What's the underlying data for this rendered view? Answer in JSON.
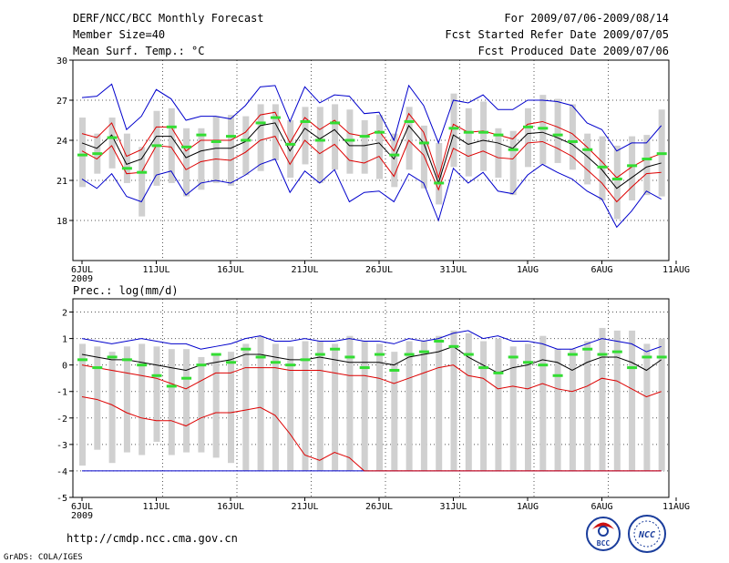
{
  "header": {
    "title": "DERF/NCC/BCC Monthly Forecast",
    "member_size": "Member Size=40",
    "variable": "Mean Surf. Temp.: °C",
    "period": "For 2009/07/06-2009/08/14",
    "started": "Fcst Started Refer Date 2009/07/05",
    "produced": "Fcst Produced Date 2009/07/06"
  },
  "footer": {
    "url": "http://cmdp.ncc.cma.gov.cn",
    "credit": "GrADS: COLA/IGES",
    "logo_bcc": "BCC",
    "logo_ncc": "NCC"
  },
  "x_axis": {
    "days": 40,
    "ticks": [
      {
        "day": 0,
        "label": "6JUL",
        "sub": "2009"
      },
      {
        "day": 5,
        "label": "11JUL"
      },
      {
        "day": 10,
        "label": "16JUL"
      },
      {
        "day": 15,
        "label": "21JUL"
      },
      {
        "day": 20,
        "label": "26JUL"
      },
      {
        "day": 25,
        "label": "31JUL"
      },
      {
        "day": 30,
        "label": "1AUG"
      },
      {
        "day": 35,
        "label": "6AUG"
      },
      {
        "day": 40,
        "label": "11AUG"
      }
    ]
  },
  "x_axis_prec_labels": [
    "6JUL",
    "11JUL",
    "16JUL",
    "21JUL",
    "26JUL",
    "31JUL",
    "1AUG",
    "6AUG",
    "11AUG"
  ],
  "colors": {
    "box": "#d0d0d0",
    "median": "#000000",
    "quartile": "#dd0000",
    "extreme": "#0000cc",
    "observed": "#33dd33",
    "grid": "#555555"
  },
  "chart_data": [
    {
      "type": "line",
      "title": "Mean Surf. Temp.: °C",
      "ylabel": "°C",
      "ylim": [
        15,
        30
      ],
      "yticks": [
        18,
        21,
        24,
        27,
        30
      ],
      "days": [
        "7/06",
        "7/07",
        "7/08",
        "7/09",
        "7/10",
        "7/11",
        "7/12",
        "7/13",
        "7/14",
        "7/15",
        "7/16",
        "7/17",
        "7/18",
        "7/19",
        "7/20",
        "7/21",
        "7/22",
        "7/23",
        "7/24",
        "7/25",
        "7/26",
        "7/27",
        "7/28",
        "7/29",
        "7/30",
        "7/31",
        "8/01",
        "8/02",
        "8/03",
        "8/04",
        "8/05",
        "8/06",
        "8/07",
        "8/08",
        "8/09",
        "8/10",
        "8/11",
        "8/12",
        "8/13",
        "8/14"
      ],
      "series": [
        {
          "name": "max",
          "values": [
            27.2,
            27.3,
            28.2,
            24.8,
            25.8,
            27.8,
            27.1,
            25.5,
            25.8,
            25.8,
            25.6,
            26.6,
            28.0,
            28.1,
            25.4,
            28.0,
            26.8,
            27.4,
            27.3,
            26.0,
            26.1,
            24.0,
            28.1,
            26.6,
            23.8,
            27.0,
            26.8,
            27.4,
            26.3,
            26.3,
            27.0,
            27.0,
            26.9,
            26.6,
            25.3,
            24.8,
            23.2,
            23.8,
            23.8,
            25.1
          ]
        },
        {
          "name": "q3",
          "values": [
            24.5,
            24.2,
            25.3,
            22.8,
            23.3,
            25.0,
            25.0,
            23.2,
            24.0,
            24.0,
            24.0,
            24.6,
            25.9,
            26.1,
            23.8,
            25.7,
            24.8,
            25.5,
            24.5,
            24.3,
            24.7,
            23.2,
            26.0,
            24.6,
            21.2,
            25.2,
            24.6,
            24.7,
            24.4,
            24.1,
            25.2,
            25.4,
            25.0,
            24.5,
            23.5,
            22.4,
            21.2,
            22.0,
            22.6,
            23.0
          ]
        },
        {
          "name": "median",
          "values": [
            23.8,
            23.4,
            24.4,
            22.2,
            22.6,
            24.3,
            24.3,
            22.7,
            23.2,
            23.4,
            23.4,
            23.9,
            25.1,
            25.3,
            23.2,
            24.9,
            24.1,
            24.8,
            23.6,
            23.6,
            23.8,
            22.6,
            25.1,
            23.8,
            20.8,
            24.4,
            23.7,
            24.0,
            23.8,
            23.4,
            24.5,
            24.6,
            24.2,
            23.7,
            22.8,
            21.8,
            20.4,
            21.2,
            22.0,
            22.3
          ]
        },
        {
          "name": "q1",
          "values": [
            23.2,
            22.6,
            23.6,
            21.5,
            21.6,
            23.6,
            23.5,
            21.8,
            22.4,
            22.6,
            22.5,
            23.1,
            24.0,
            24.3,
            22.2,
            24.0,
            23.0,
            23.7,
            22.5,
            22.3,
            22.8,
            21.3,
            24.0,
            22.9,
            20.3,
            23.4,
            22.8,
            23.2,
            22.7,
            22.6,
            23.8,
            23.9,
            23.4,
            22.8,
            21.8,
            20.8,
            19.4,
            20.5,
            21.5,
            21.6
          ]
        },
        {
          "name": "min",
          "values": [
            21.1,
            20.4,
            21.5,
            19.8,
            19.4,
            21.4,
            21.7,
            19.9,
            20.8,
            21.0,
            20.8,
            21.4,
            22.2,
            22.6,
            20.1,
            21.7,
            20.8,
            21.8,
            19.4,
            20.1,
            20.2,
            19.4,
            21.5,
            20.8,
            18.0,
            21.9,
            20.8,
            21.6,
            20.2,
            20.0,
            21.4,
            22.2,
            21.6,
            21.1,
            20.2,
            19.6,
            17.5,
            18.7,
            20.2,
            19.6
          ]
        },
        {
          "name": "observed",
          "values": [
            22.9,
            23.0,
            24.2,
            21.9,
            21.6,
            23.6,
            25.0,
            23.5,
            24.4,
            23.9,
            24.3,
            24.0,
            25.3,
            25.7,
            23.7,
            25.4,
            24.0,
            25.3,
            24.0,
            24.3,
            24.6,
            22.9,
            25.4,
            23.8,
            20.8,
            24.9,
            24.6,
            24.6,
            24.4,
            23.3,
            25.0,
            24.9,
            24.4,
            23.9,
            23.3,
            22.0,
            21.1,
            22.1,
            22.6,
            23.0
          ]
        },
        {
          "name": "box_low",
          "values": [
            20.5,
            21.5,
            21.9,
            20.8,
            18.3,
            20.6,
            20.8,
            19.8,
            20.3,
            20.8,
            20.6,
            21.4,
            21.7,
            22.5,
            21.2,
            22.2,
            20.8,
            21.8,
            21.5,
            21.5,
            21.1,
            20.5,
            21.8,
            20.4,
            19.2,
            22.0,
            21.3,
            21.7,
            21.2,
            19.9,
            22.0,
            22.2,
            22.3,
            21.8,
            20.7,
            19.5,
            18.1,
            19.5,
            19.9,
            19.8
          ]
        },
        {
          "name": "box_high",
          "values": [
            25.7,
            24.5,
            25.7,
            24.5,
            23.5,
            26.2,
            26.4,
            24.9,
            24.9,
            25.8,
            25.9,
            25.8,
            26.7,
            26.7,
            25.5,
            26.5,
            26.5,
            26.7,
            26.3,
            25.5,
            25.9,
            24.5,
            26.5,
            25.1,
            23.8,
            27.5,
            26.4,
            26.9,
            24.9,
            24.7,
            26.4,
            27.4,
            27.1,
            26.7,
            24.5,
            24.3,
            23.6,
            24.3,
            24.4,
            26.3
          ]
        }
      ]
    },
    {
      "type": "line",
      "title": "Prec.: log(mm/d)",
      "ylabel": "log(mm/d)",
      "ylim": [
        -5,
        2.5
      ],
      "yticks": [
        -5,
        -4,
        -3,
        -2,
        -1,
        0,
        1,
        2
      ],
      "series": [
        {
          "name": "max",
          "values": [
            1.0,
            0.9,
            0.8,
            0.9,
            1.0,
            0.9,
            0.8,
            0.8,
            0.6,
            0.7,
            0.8,
            1.0,
            1.1,
            0.9,
            0.9,
            1.0,
            0.9,
            0.9,
            1.0,
            0.9,
            0.9,
            0.8,
            1.0,
            0.9,
            1.0,
            1.2,
            1.3,
            1.0,
            1.1,
            0.9,
            0.9,
            0.8,
            0.6,
            0.6,
            0.8,
            1.0,
            0.9,
            0.8,
            0.5,
            0.7
          ]
        },
        {
          "name": "median",
          "values": [
            0.4,
            0.3,
            0.2,
            0.2,
            0.1,
            0.0,
            -0.1,
            -0.2,
            0.0,
            0.1,
            0.2,
            0.4,
            0.4,
            0.3,
            0.2,
            0.2,
            0.3,
            0.2,
            0.1,
            0.1,
            0.1,
            0.0,
            0.3,
            0.4,
            0.5,
            0.7,
            0.3,
            0.0,
            -0.3,
            -0.1,
            0.0,
            0.2,
            0.1,
            -0.2,
            0.1,
            0.3,
            0.3,
            0.1,
            -0.2,
            0.2
          ]
        },
        {
          "name": "q1",
          "values": [
            -1.2,
            -1.3,
            -1.5,
            -1.8,
            -2.0,
            -2.1,
            -2.1,
            -2.3,
            -2.0,
            -1.8,
            -1.8,
            -1.7,
            -1.6,
            -1.9,
            -2.6,
            -3.4,
            -3.6,
            -3.3,
            -3.5,
            -4.0,
            -4.0,
            -4.0,
            -4.0,
            -4.0,
            -4.0,
            -4.0,
            -4.0,
            -4.0,
            -4.0,
            -4.0,
            -4.0,
            -4.0,
            -4.0,
            -4.0,
            -4.0,
            -4.0,
            -4.0,
            -4.0,
            -4.0,
            -4.0
          ]
        },
        {
          "name": "q3",
          "values": [
            0.0,
            -0.1,
            -0.2,
            -0.3,
            -0.4,
            -0.5,
            -0.7,
            -0.9,
            -0.6,
            -0.3,
            -0.3,
            -0.1,
            -0.1,
            -0.1,
            -0.2,
            -0.2,
            -0.2,
            -0.3,
            -0.4,
            -0.4,
            -0.5,
            -0.7,
            -0.5,
            -0.3,
            -0.1,
            0.0,
            -0.4,
            -0.5,
            -0.9,
            -0.8,
            -0.9,
            -0.7,
            -0.9,
            -1.0,
            -0.8,
            -0.5,
            -0.6,
            -0.9,
            -1.2,
            -1.0
          ]
        },
        {
          "name": "q3_red",
          "values": [
            -1.2,
            -1.3,
            -1.5,
            -1.8,
            -2.0,
            -2.1,
            -2.1,
            -2.3,
            -2.0,
            -1.8,
            -1.8,
            -1.7,
            -1.6,
            -1.9,
            -2.6,
            -3.4,
            -3.6,
            -3.3,
            -3.5,
            -4.0,
            -4.0,
            -4.0,
            -4.0,
            -4.0,
            -4.0,
            -4.0,
            -4.0,
            -4.0,
            -4.0,
            -4.0,
            -4.0,
            -4.0,
            -4.0,
            -4.0,
            -4.0,
            -4.0,
            -4.0,
            -4.0,
            -4.0,
            -4.0
          ]
        },
        {
          "name": "min",
          "values": [
            -4.0,
            -4.0,
            -4.0,
            -4.0,
            -4.0,
            -4.0,
            -4.0,
            -4.0,
            -4.0,
            -4.0,
            -4.0,
            -4.0,
            -4.0,
            -4.0,
            -4.0,
            -4.0,
            -4.0,
            -4.0,
            -4.0,
            -4.0,
            -4.0,
            -4.0,
            -4.0,
            -4.0,
            -4.0,
            -4.0,
            -4.0,
            -4.0,
            -4.0,
            -4.0,
            -4.0,
            -4.0,
            -4.0,
            -4.0,
            -4.0,
            -4.0,
            -4.0,
            -4.0,
            -4.0,
            -4.0
          ]
        },
        {
          "name": "observed",
          "values": [
            0.2,
            -0.1,
            0.3,
            0.2,
            0.0,
            -0.4,
            -0.8,
            -0.5,
            0.0,
            0.4,
            0.1,
            0.6,
            0.3,
            0.1,
            0.0,
            0.2,
            0.4,
            0.6,
            0.3,
            -0.1,
            0.4,
            -0.2,
            0.4,
            0.5,
            0.9,
            0.7,
            0.4,
            -0.1,
            -0.3,
            0.3,
            0.1,
            0.0,
            -0.4,
            0.4,
            0.6,
            0.4,
            0.5,
            -0.1,
            0.3,
            0.3
          ]
        },
        {
          "name": "box_low",
          "values": [
            -3.8,
            -3.2,
            -3.7,
            -3.3,
            -3.4,
            -2.9,
            -3.4,
            -3.3,
            -3.3,
            -3.5,
            -3.7,
            -4.0,
            -4.0,
            -4.0,
            -4.0,
            -4.0,
            -4.0,
            -4.0,
            -4.0,
            -4.0,
            -4.0,
            -4.0,
            -4.0,
            -4.0,
            -4.0,
            -4.0,
            -4.0,
            -4.0,
            -4.0,
            -4.0,
            -4.0,
            -4.0,
            -4.0,
            -4.0,
            -4.0,
            -4.0,
            -4.0,
            -4.0,
            -4.0,
            -4.0
          ]
        },
        {
          "name": "box_high",
          "values": [
            0.8,
            0.7,
            0.5,
            0.7,
            0.8,
            0.7,
            0.6,
            0.6,
            0.3,
            0.4,
            0.5,
            0.8,
            1.1,
            0.8,
            0.7,
            0.9,
            0.9,
            0.8,
            1.1,
            0.9,
            0.8,
            0.5,
            0.9,
            0.9,
            1.1,
            1.3,
            1.2,
            0.9,
            1.0,
            0.7,
            0.8,
            1.1,
            0.6,
            0.6,
            0.9,
            1.4,
            1.3,
            1.3,
            0.8,
            1.0
          ]
        }
      ]
    }
  ]
}
